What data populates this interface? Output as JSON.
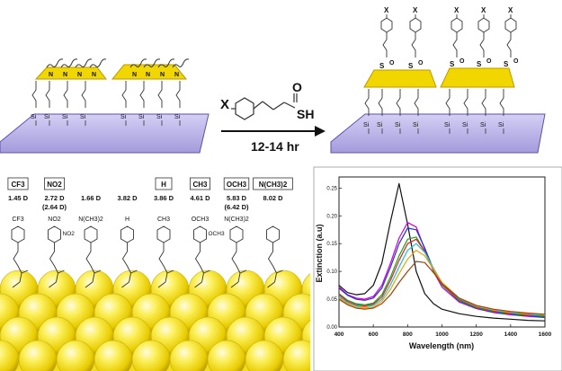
{
  "reaction": {
    "substituent": "X",
    "reagent_group": "SH",
    "reagent_oxygen": "O",
    "condition": "12-14 hr"
  },
  "surface": {
    "tether_atom": "Si",
    "anchor_atom": "N",
    "thiol_atom": "S",
    "carbonyl_atom": "O",
    "product_substituent": "X"
  },
  "ligands": [
    {
      "group": "CF3",
      "group_sub": "3",
      "dipole": "1.45 D",
      "dipole_alt": "",
      "boxed": true,
      "label": "CF3"
    },
    {
      "group": "NO2",
      "group_sub": "2",
      "dipole": "2.72 D",
      "dipole_alt": "(2.64 D)",
      "boxed": true,
      "label": "NO2",
      "label_meta": "NO2"
    },
    {
      "group": "",
      "group_sub": "",
      "dipole": "1.66 D",
      "dipole_alt": "",
      "boxed": false,
      "label": "N(CH3)2"
    },
    {
      "group": "",
      "group_sub": "",
      "dipole": "3.82 D",
      "dipole_alt": "",
      "boxed": false,
      "label": "H"
    },
    {
      "group": "H",
      "group_sub": "",
      "dipole": "3.86 D",
      "dipole_alt": "",
      "boxed": true,
      "label": "CH3"
    },
    {
      "group": "CH3",
      "group_sub": "3",
      "dipole": "4.61 D",
      "dipole_alt": "",
      "boxed": true,
      "label": "OCH3",
      "label_meta": "OCH3"
    },
    {
      "group": "OCH3",
      "group_sub": "3",
      "dipole": "5.83 D",
      "dipole_alt": "(6.42 D)",
      "boxed": true,
      "label": "N(CH3)2"
    },
    {
      "group": "N(CH3)2",
      "group_sub": "",
      "dipole": "8.02 D",
      "dipole_alt": "",
      "boxed": true,
      "label": ""
    }
  ],
  "colors": {
    "gold": "#f2d600",
    "gold_dark": "#b89a00",
    "substrate": "#b9b3e6",
    "substrate_edge": "#5d53a8",
    "sphere_light": "#fff8b0",
    "sphere_mid": "#f5e200",
    "sphere_dark": "#c7a800"
  },
  "chart_data": {
    "type": "line",
    "xlabel": "Wavelength (nm)",
    "ylabel": "Extinction (a.u)",
    "xlim": [
      400,
      1600
    ],
    "ylim": [
      0.0,
      0.27
    ],
    "xticks": [
      400,
      600,
      800,
      1000,
      1200,
      1400,
      1600
    ],
    "yticks": [
      0.0,
      0.05,
      0.1,
      0.15,
      0.2,
      0.25
    ],
    "x": [
      400,
      450,
      500,
      550,
      600,
      650,
      700,
      750,
      800,
      850,
      900,
      950,
      1000,
      1100,
      1200,
      1300,
      1400,
      1500,
      1600
    ],
    "series": [
      {
        "color": "#111111",
        "values": [
          0.075,
          0.062,
          0.058,
          0.06,
          0.075,
          0.115,
          0.19,
          0.258,
          0.185,
          0.1,
          0.06,
          0.042,
          0.032,
          0.024,
          0.019,
          0.016,
          0.014,
          0.012,
          0.011
        ]
      },
      {
        "color": "#d000d0",
        "values": [
          0.072,
          0.058,
          0.052,
          0.05,
          0.055,
          0.075,
          0.115,
          0.16,
          0.188,
          0.18,
          0.14,
          0.1,
          0.072,
          0.045,
          0.033,
          0.026,
          0.022,
          0.019,
          0.017
        ]
      },
      {
        "color": "#2030e0",
        "values": [
          0.07,
          0.057,
          0.05,
          0.048,
          0.052,
          0.07,
          0.108,
          0.15,
          0.178,
          0.175,
          0.142,
          0.104,
          0.076,
          0.047,
          0.034,
          0.027,
          0.023,
          0.02,
          0.018
        ]
      },
      {
        "color": "#20a020",
        "values": [
          0.06,
          0.048,
          0.042,
          0.04,
          0.043,
          0.058,
          0.09,
          0.128,
          0.158,
          0.162,
          0.136,
          0.102,
          0.076,
          0.048,
          0.035,
          0.028,
          0.024,
          0.021,
          0.019
        ]
      },
      {
        "color": "#e02020",
        "values": [
          0.058,
          0.046,
          0.04,
          0.038,
          0.041,
          0.054,
          0.084,
          0.12,
          0.15,
          0.158,
          0.136,
          0.104,
          0.078,
          0.05,
          0.036,
          0.029,
          0.025,
          0.022,
          0.02
        ]
      },
      {
        "color": "#20c0d0",
        "values": [
          0.055,
          0.044,
          0.038,
          0.036,
          0.039,
          0.05,
          0.076,
          0.108,
          0.138,
          0.15,
          0.134,
          0.106,
          0.08,
          0.051,
          0.037,
          0.03,
          0.026,
          0.023,
          0.021
        ]
      },
      {
        "color": "#f0a000",
        "values": [
          0.052,
          0.042,
          0.036,
          0.034,
          0.036,
          0.046,
          0.068,
          0.096,
          0.122,
          0.138,
          0.128,
          0.104,
          0.08,
          0.052,
          0.038,
          0.031,
          0.027,
          0.024,
          0.022
        ]
      },
      {
        "color": "#a04010",
        "values": [
          0.05,
          0.04,
          0.034,
          0.032,
          0.034,
          0.042,
          0.058,
          0.08,
          0.1,
          0.118,
          0.116,
          0.098,
          0.078,
          0.052,
          0.039,
          0.032,
          0.028,
          0.025,
          0.023
        ]
      }
    ]
  }
}
